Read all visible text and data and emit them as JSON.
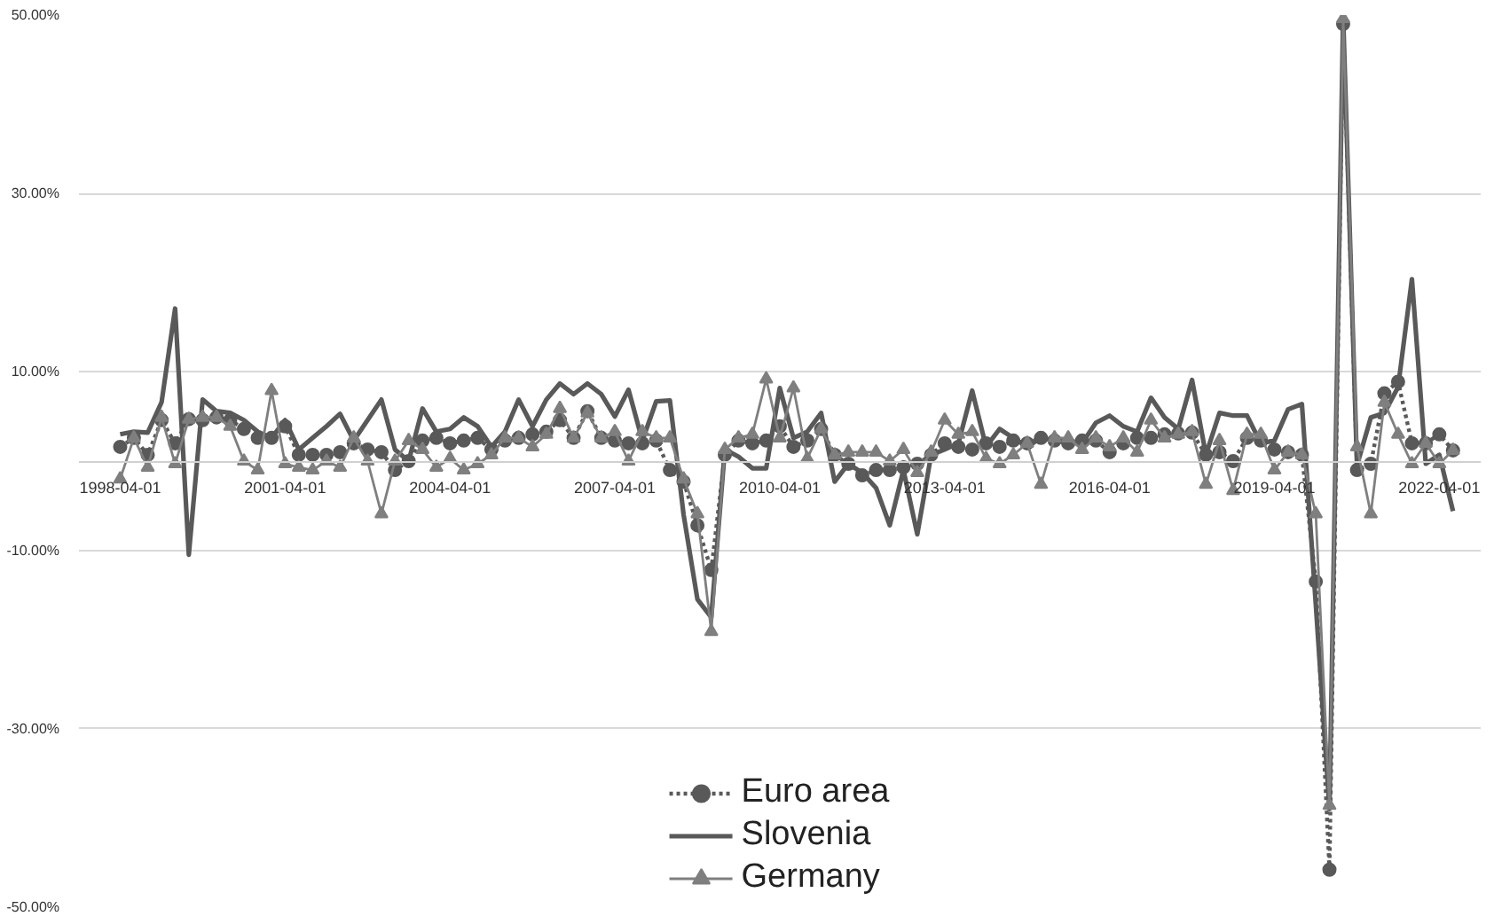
{
  "chart_data": {
    "type": "line",
    "x": [
      "1998-04-01",
      "1998-07-01",
      "1998-10-01",
      "1999-01-01",
      "1999-04-01",
      "1999-07-01",
      "1999-10-01",
      "2000-01-01",
      "2000-04-01",
      "2000-07-01",
      "2000-10-01",
      "2001-01-01",
      "2001-04-01",
      "2001-07-01",
      "2001-10-01",
      "2002-01-01",
      "2002-04-01",
      "2002-07-01",
      "2002-10-01",
      "2003-01-01",
      "2003-04-01",
      "2003-07-01",
      "2003-10-01",
      "2004-01-01",
      "2004-04-01",
      "2004-07-01",
      "2004-10-01",
      "2005-01-01",
      "2005-04-01",
      "2005-07-01",
      "2005-10-01",
      "2006-01-01",
      "2006-04-01",
      "2006-07-01",
      "2006-10-01",
      "2007-01-01",
      "2007-04-01",
      "2007-07-01",
      "2007-10-01",
      "2008-01-01",
      "2008-04-01",
      "2008-07-01",
      "2008-10-01",
      "2009-01-01",
      "2009-04-01",
      "2009-07-01",
      "2009-10-01",
      "2010-01-01",
      "2010-04-01",
      "2010-07-01",
      "2010-10-01",
      "2011-01-01",
      "2011-04-01",
      "2011-07-01",
      "2011-10-01",
      "2012-01-01",
      "2012-04-01",
      "2012-07-01",
      "2012-10-01",
      "2013-01-01",
      "2013-04-01",
      "2013-07-01",
      "2013-10-01",
      "2014-01-01",
      "2014-04-01",
      "2014-07-01",
      "2014-10-01",
      "2015-01-01",
      "2015-04-01",
      "2015-07-01",
      "2015-10-01",
      "2016-01-01",
      "2016-04-01",
      "2016-07-01",
      "2016-10-01",
      "2017-01-01",
      "2017-04-01",
      "2017-07-01",
      "2017-10-01",
      "2018-01-01",
      "2018-04-01",
      "2018-07-01",
      "2018-10-01",
      "2019-01-01",
      "2019-04-01",
      "2019-07-01",
      "2019-10-01",
      "2020-01-01",
      "2020-04-01",
      "2020-07-01",
      "2020-10-01",
      "2021-01-01",
      "2021-04-01",
      "2021-07-01",
      "2021-10-01",
      "2022-01-01",
      "2022-04-01",
      "2022-07-01"
    ],
    "series": [
      {
        "name": "Euro area",
        "color": "#595959",
        "marker": "circle",
        "line_style": "dotted",
        "values": [
          1.6,
          2.6,
          0.7,
          4.6,
          2.0,
          4.7,
          4.6,
          4.9,
          4.6,
          3.6,
          2.6,
          2.6,
          3.9,
          0.7,
          0.7,
          0.7,
          1.0,
          2.0,
          1.3,
          1.0,
          -1.0,
          0,
          2.3,
          2.6,
          2.0,
          2.3,
          2.6,
          1.3,
          2.3,
          2.6,
          3.0,
          3.3,
          4.6,
          2.6,
          5.6,
          2.6,
          2.3,
          2.0,
          2.0,
          2.3,
          -1.0,
          -2.3,
          -7.2,
          -12.2,
          0.7,
          2.3,
          2.0,
          2.3,
          3.9,
          1.6,
          2.3,
          3.6,
          0.7,
          -0.3,
          -1.6,
          -1.0,
          -1.0,
          -0.7,
          -0.3,
          0.7,
          2.0,
          1.6,
          1.3,
          2.0,
          1.6,
          2.3,
          2.0,
          2.6,
          2.3,
          2.0,
          2.3,
          2.3,
          1.0,
          2.0,
          2.6,
          2.6,
          3.0,
          3.1,
          3.2,
          0.7,
          1.0,
          0,
          2.6,
          2.3,
          1.3,
          1.0,
          0.7,
          -13.5,
          -45.8,
          49.0,
          -1.0,
          -0.3,
          7.6,
          8.9,
          2.0,
          2.0,
          3.0,
          1.2
        ]
      },
      {
        "name": "Slovenia",
        "color": "#595959",
        "marker": "none",
        "line_style": "solid",
        "values": [
          3.0,
          3.3,
          3.2,
          6.6,
          17.1,
          -10.5,
          6.9,
          5.6,
          5.4,
          4.6,
          3.3,
          2.6,
          4.6,
          1.3,
          2.6,
          3.9,
          5.3,
          2.3,
          4.6,
          6.9,
          1.3,
          0,
          5.9,
          3.3,
          3.6,
          4.9,
          3.9,
          1.6,
          3.3,
          6.9,
          3.9,
          6.9,
          8.7,
          7.5,
          8.7,
          7.5,
          5.0,
          8.0,
          2.3,
          6.7,
          6.8,
          -6.0,
          -15.5,
          -17.5,
          1.3,
          0.5,
          -0.8,
          -0.8,
          8.2,
          2.6,
          3.3,
          5.4,
          -2.3,
          -0.3,
          -1.3,
          -3.0,
          -7.2,
          -1.0,
          -8.2,
          0.7,
          1.3,
          2.0,
          7.9,
          1.6,
          3.6,
          2.6,
          1.6,
          2.6,
          2.3,
          2.3,
          2.0,
          4.3,
          5.1,
          3.9,
          3.3,
          7.1,
          4.9,
          3.6,
          9.1,
          0.7,
          5.4,
          5.1,
          5.1,
          2.0,
          2.3,
          5.8,
          6.4,
          -16.0,
          -39.0,
          49.8,
          -0.5,
          4.9,
          5.4,
          8.3,
          20.4,
          -0.3,
          0.7,
          -5.6
        ]
      },
      {
        "name": "Germany",
        "color": "#7f7f7f",
        "marker": "triangle",
        "line_style": "solid",
        "values": [
          -2.0,
          2.6,
          -0.7,
          4.9,
          -0.3,
          4.7,
          4.9,
          4.9,
          3.9,
          0,
          -1.0,
          7.9,
          -0.3,
          -0.7,
          -1.0,
          0,
          -0.7,
          2.6,
          0,
          -5.9,
          0,
          2.3,
          1.3,
          -0.7,
          0.3,
          -1.0,
          -0.3,
          0.7,
          2.6,
          2.6,
          1.6,
          3.0,
          5.9,
          2.6,
          5.4,
          2.6,
          3.3,
          0,
          3.3,
          2.6,
          2.6,
          -2.0,
          -5.9,
          -19.1,
          1.3,
          2.6,
          3.0,
          9.2,
          2.6,
          8.2,
          0.3,
          3.6,
          0.7,
          1.0,
          1.0,
          1.0,
          0,
          1.3,
          -1.3,
          1.0,
          4.6,
          3.0,
          3.3,
          0.3,
          -0.3,
          0.7,
          2.0,
          -2.6,
          2.6,
          2.6,
          1.3,
          2.6,
          1.6,
          2.6,
          1.0,
          4.6,
          2.6,
          3.0,
          3.3,
          -2.6,
          2.3,
          -3.3,
          3.0,
          3.0,
          -1.0,
          1.0,
          0.7,
          -5.9,
          -38.6,
          49.6,
          1.6,
          -5.9,
          6.6,
          3.0,
          -0.3,
          2.0,
          -0.3,
          1.2
        ]
      }
    ],
    "xlim": [
      "1997-07-01",
      "2023-01-01"
    ],
    "xticks": [
      {
        "value": "1998-04-01",
        "label": "1998-04-01"
      },
      {
        "value": "2001-04-01",
        "label": "2001-04-01"
      },
      {
        "value": "2004-04-01",
        "label": "2004-04-01"
      },
      {
        "value": "2007-04-01",
        "label": "2007-04-01"
      },
      {
        "value": "2010-04-01",
        "label": "2010-04-01"
      },
      {
        "value": "2013-04-01",
        "label": "2013-04-01"
      },
      {
        "value": "2016-04-01",
        "label": "2016-04-01"
      },
      {
        "value": "2019-04-01",
        "label": "2019-04-01"
      },
      {
        "value": "2022-04-01",
        "label": "2022-04-01"
      }
    ],
    "ylim": [
      -50,
      50
    ],
    "yticks": [
      {
        "value": -50,
        "label": "-50.00%"
      },
      {
        "value": -30,
        "label": "-30.00%"
      },
      {
        "value": -10,
        "label": "-10.00%"
      },
      {
        "value": 10,
        "label": "10.00%"
      },
      {
        "value": 30,
        "label": "30.00%"
      },
      {
        "value": 50,
        "label": "50.00%"
      }
    ],
    "grid": "y",
    "legend": "bottom"
  }
}
